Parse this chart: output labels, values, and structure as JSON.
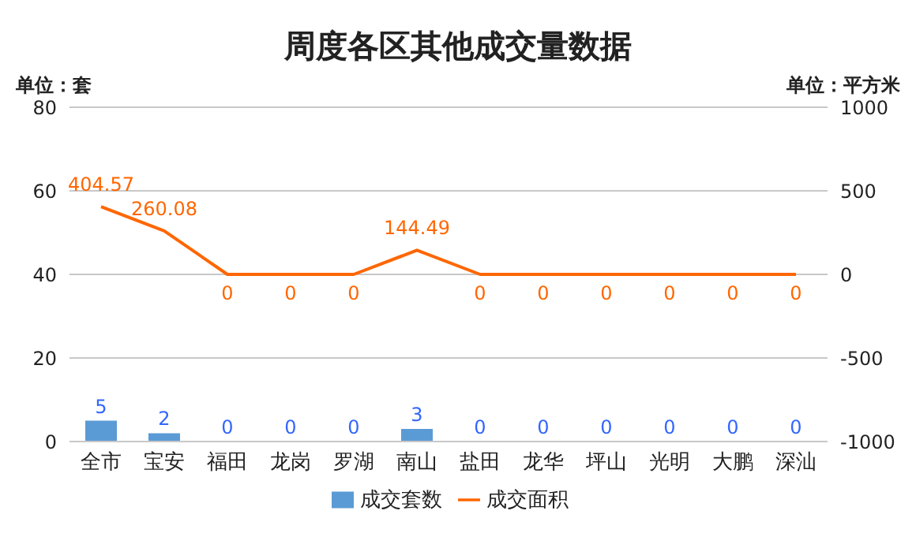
{
  "chart_data": {
    "type": "bar",
    "title": "周度各区其他成交量数据",
    "ylabel": "单位：套",
    "y2label": "单位：平方米",
    "categories": [
      "全市",
      "宝安",
      "福田",
      "龙岗",
      "罗湖",
      "南山",
      "盐田",
      "龙华",
      "坪山",
      "光明",
      "大鹏",
      "深汕"
    ],
    "series": [
      {
        "name": "成交套数",
        "color": "#5b9bd5",
        "values": [
          5,
          2,
          0,
          0,
          0,
          3,
          0,
          0,
          0,
          0,
          0,
          0
        ]
      },
      {
        "name": "成交面积",
        "type": "line",
        "axis": "y2",
        "color": "#ff6600",
        "values": [
          404.57,
          260.08,
          0,
          0,
          0,
          144.49,
          0,
          0,
          0,
          0,
          0,
          0
        ]
      }
    ],
    "ylim": [
      0,
      80
    ],
    "yticks": [
      0,
      20,
      40,
      60,
      80
    ],
    "y2lim": [
      -1000,
      1000
    ],
    "y2ticks": [
      -1000,
      -500,
      0,
      500,
      1000
    ],
    "grid": "y",
    "legend": "bottom",
    "data_labels": true,
    "marker": "none"
  }
}
